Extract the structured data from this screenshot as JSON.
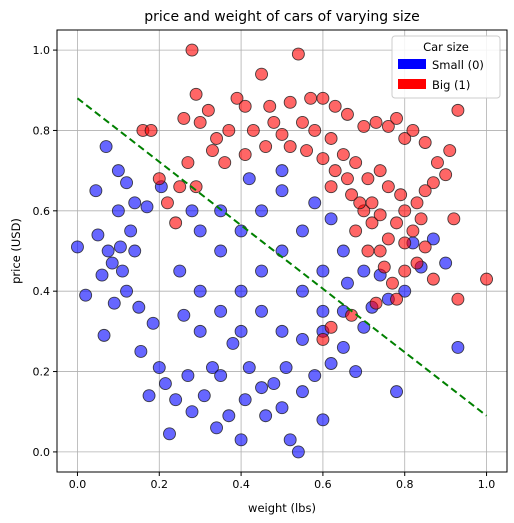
{
  "chart_data": {
    "type": "scatter",
    "title": "price and weight of cars of varying size",
    "xlabel": "weight (lbs)",
    "ylabel": "price (USD)",
    "xlim": [
      -0.05,
      1.05
    ],
    "ylim": [
      -0.05,
      1.05
    ],
    "xticks": [
      "0.0",
      "0.2",
      "0.4",
      "0.6",
      "0.8",
      "1.0"
    ],
    "yticks": [
      "0.0",
      "0.2",
      "0.4",
      "0.6",
      "0.8",
      "1.0"
    ],
    "grid": true,
    "legend": {
      "title": "Car size",
      "placement": "top-right",
      "entries": [
        "Small (0)",
        "Big (1)"
      ]
    },
    "colors": {
      "small": "#0000ff",
      "big": "#ff0000",
      "boundary": "#008000"
    },
    "decision_boundary": {
      "x": [
        0.0,
        1.0
      ],
      "y": [
        0.88,
        0.09
      ],
      "style": "dashed"
    },
    "series": [
      {
        "name": "Small (0)",
        "points": [
          [
            0.0,
            0.51
          ],
          [
            0.02,
            0.39
          ],
          [
            0.045,
            0.65
          ],
          [
            0.05,
            0.54
          ],
          [
            0.06,
            0.44
          ],
          [
            0.065,
            0.29
          ],
          [
            0.07,
            0.76
          ],
          [
            0.075,
            0.5
          ],
          [
            0.085,
            0.47
          ],
          [
            0.09,
            0.37
          ],
          [
            0.1,
            0.7
          ],
          [
            0.1,
            0.6
          ],
          [
            0.105,
            0.51
          ],
          [
            0.11,
            0.45
          ],
          [
            0.12,
            0.67
          ],
          [
            0.12,
            0.4
          ],
          [
            0.13,
            0.55
          ],
          [
            0.14,
            0.62
          ],
          [
            0.14,
            0.5
          ],
          [
            0.15,
            0.36
          ],
          [
            0.155,
            0.25
          ],
          [
            0.17,
            0.61
          ],
          [
            0.175,
            0.14
          ],
          [
            0.185,
            0.32
          ],
          [
            0.2,
            0.21
          ],
          [
            0.205,
            0.66
          ],
          [
            0.215,
            0.17
          ],
          [
            0.225,
            0.045
          ],
          [
            0.24,
            0.13
          ],
          [
            0.26,
            0.34
          ],
          [
            0.27,
            0.19
          ],
          [
            0.28,
            0.1
          ],
          [
            0.31,
            0.14
          ],
          [
            0.33,
            0.21
          ],
          [
            0.34,
            0.06
          ],
          [
            0.35,
            0.19
          ],
          [
            0.37,
            0.09
          ],
          [
            0.38,
            0.27
          ],
          [
            0.4,
            0.03
          ],
          [
            0.41,
            0.13
          ],
          [
            0.42,
            0.21
          ],
          [
            0.45,
            0.16
          ],
          [
            0.46,
            0.09
          ],
          [
            0.48,
            0.17
          ],
          [
            0.5,
            0.11
          ],
          [
            0.51,
            0.21
          ],
          [
            0.52,
            0.03
          ],
          [
            0.54,
            0.0
          ],
          [
            0.55,
            0.15
          ],
          [
            0.58,
            0.19
          ],
          [
            0.6,
            0.08
          ],
          [
            0.62,
            0.22
          ],
          [
            0.65,
            0.26
          ],
          [
            0.68,
            0.2
          ],
          [
            0.7,
            0.31
          ],
          [
            0.72,
            0.36
          ],
          [
            0.74,
            0.44
          ],
          [
            0.76,
            0.38
          ],
          [
            0.78,
            0.15
          ],
          [
            0.8,
            0.4
          ],
          [
            0.82,
            0.52
          ],
          [
            0.84,
            0.46
          ],
          [
            0.87,
            0.53
          ],
          [
            0.9,
            0.47
          ],
          [
            0.93,
            0.26
          ],
          [
            0.3,
            0.3
          ],
          [
            0.35,
            0.35
          ],
          [
            0.4,
            0.4
          ],
          [
            0.45,
            0.45
          ],
          [
            0.5,
            0.5
          ],
          [
            0.55,
            0.4
          ],
          [
            0.6,
            0.35
          ],
          [
            0.25,
            0.45
          ],
          [
            0.3,
            0.55
          ],
          [
            0.35,
            0.6
          ],
          [
            0.4,
            0.55
          ],
          [
            0.45,
            0.6
          ],
          [
            0.5,
            0.65
          ],
          [
            0.55,
            0.55
          ],
          [
            0.6,
            0.45
          ],
          [
            0.65,
            0.5
          ],
          [
            0.65,
            0.35
          ],
          [
            0.3,
            0.4
          ],
          [
            0.35,
            0.5
          ],
          [
            0.4,
            0.3
          ],
          [
            0.45,
            0.35
          ],
          [
            0.5,
            0.3
          ],
          [
            0.55,
            0.28
          ],
          [
            0.6,
            0.3
          ],
          [
            0.28,
            0.6
          ],
          [
            0.5,
            0.7
          ],
          [
            0.42,
            0.68
          ],
          [
            0.58,
            0.62
          ],
          [
            0.62,
            0.58
          ],
          [
            0.66,
            0.42
          ],
          [
            0.7,
            0.45
          ]
        ]
      },
      {
        "name": "Big (1)",
        "points": [
          [
            0.28,
            1.0
          ],
          [
            0.54,
            0.99
          ],
          [
            0.45,
            0.94
          ],
          [
            0.29,
            0.89
          ],
          [
            0.39,
            0.88
          ],
          [
            0.41,
            0.86
          ],
          [
            0.47,
            0.86
          ],
          [
            0.52,
            0.87
          ],
          [
            0.57,
            0.88
          ],
          [
            0.6,
            0.88
          ],
          [
            0.63,
            0.86
          ],
          [
            0.66,
            0.84
          ],
          [
            0.7,
            0.81
          ],
          [
            0.73,
            0.82
          ],
          [
            0.76,
            0.81
          ],
          [
            0.78,
            0.83
          ],
          [
            0.8,
            0.78
          ],
          [
            0.82,
            0.8
          ],
          [
            0.85,
            0.77
          ],
          [
            0.88,
            0.72
          ],
          [
            0.91,
            0.75
          ],
          [
            0.93,
            0.85
          ],
          [
            0.92,
            0.58
          ],
          [
            0.87,
            0.67
          ],
          [
            0.9,
            0.69
          ],
          [
            0.85,
            0.65
          ],
          [
            0.83,
            0.62
          ],
          [
            0.8,
            0.6
          ],
          [
            0.78,
            0.57
          ],
          [
            0.76,
            0.53
          ],
          [
            0.74,
            0.5
          ],
          [
            0.85,
            0.51
          ],
          [
            0.83,
            0.47
          ],
          [
            0.87,
            0.43
          ],
          [
            0.93,
            0.38
          ],
          [
            0.78,
            0.38
          ],
          [
            0.73,
            0.37
          ],
          [
            0.67,
            0.34
          ],
          [
            0.62,
            0.31
          ],
          [
            0.6,
            0.28
          ],
          [
            1.0,
            0.43
          ],
          [
            0.16,
            0.8
          ],
          [
            0.18,
            0.8
          ],
          [
            0.2,
            0.68
          ],
          [
            0.22,
            0.62
          ],
          [
            0.24,
            0.57
          ],
          [
            0.26,
            0.83
          ],
          [
            0.3,
            0.82
          ],
          [
            0.32,
            0.85
          ],
          [
            0.34,
            0.78
          ],
          [
            0.37,
            0.8
          ],
          [
            0.43,
            0.8
          ],
          [
            0.48,
            0.82
          ],
          [
            0.5,
            0.79
          ],
          [
            0.55,
            0.82
          ],
          [
            0.58,
            0.8
          ],
          [
            0.62,
            0.78
          ],
          [
            0.65,
            0.74
          ],
          [
            0.68,
            0.72
          ],
          [
            0.71,
            0.68
          ],
          [
            0.74,
            0.7
          ],
          [
            0.76,
            0.66
          ],
          [
            0.79,
            0.64
          ],
          [
            0.7,
            0.6
          ],
          [
            0.72,
            0.57
          ],
          [
            0.68,
            0.55
          ],
          [
            0.75,
            0.46
          ],
          [
            0.77,
            0.42
          ],
          [
            0.8,
            0.45
          ],
          [
            0.71,
            0.5
          ],
          [
            0.69,
            0.62
          ],
          [
            0.66,
            0.68
          ],
          [
            0.63,
            0.7
          ],
          [
            0.6,
            0.73
          ],
          [
            0.56,
            0.75
          ],
          [
            0.52,
            0.76
          ],
          [
            0.46,
            0.76
          ],
          [
            0.41,
            0.74
          ],
          [
            0.36,
            0.72
          ],
          [
            0.33,
            0.75
          ],
          [
            0.27,
            0.72
          ],
          [
            0.25,
            0.66
          ],
          [
            0.29,
            0.66
          ],
          [
            0.62,
            0.66
          ],
          [
            0.67,
            0.64
          ],
          [
            0.72,
            0.62
          ],
          [
            0.74,
            0.59
          ],
          [
            0.82,
            0.55
          ],
          [
            0.84,
            0.58
          ],
          [
            0.8,
            0.52
          ]
        ]
      }
    ]
  }
}
